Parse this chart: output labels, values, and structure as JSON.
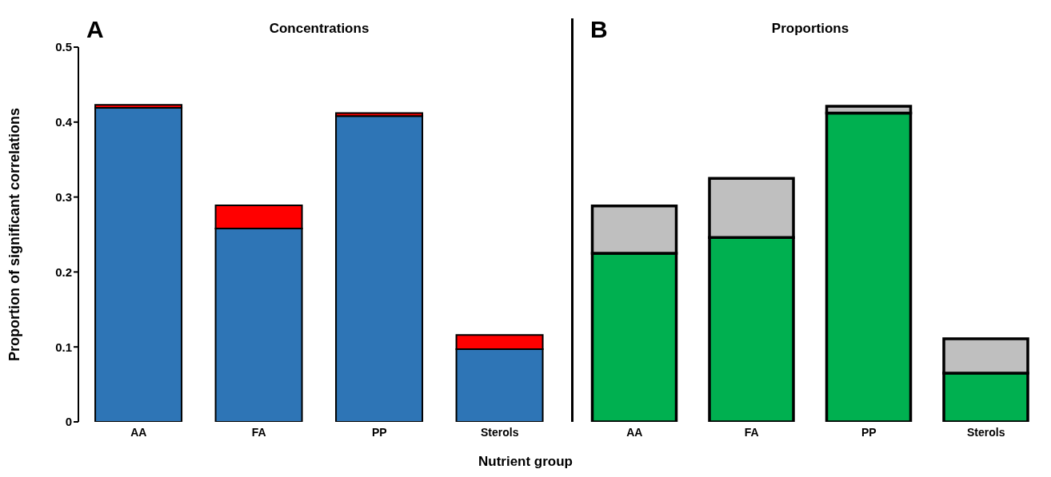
{
  "chart_data": [
    {
      "type": "bar",
      "title": "Concentrations",
      "ylabel": "Proportion of significant correlations",
      "xlabel": "Nutrient group",
      "annotations": [
        "A"
      ],
      "categories": [
        "AA",
        "FA",
        "PP",
        "Sterols"
      ],
      "stacked": true,
      "series": [
        {
          "color": "#2e75b6",
          "values": [
            0.419,
            0.258,
            0.408,
            0.097
          ]
        },
        {
          "color": "#ff0000",
          "values": [
            0.004,
            0.031,
            0.004,
            0.019
          ]
        }
      ],
      "ylim": [
        0,
        0.5
      ],
      "yticks": [
        0,
        0.1,
        0.2,
        0.3,
        0.4,
        0.5
      ],
      "grid": false,
      "legend": false
    },
    {
      "type": "bar",
      "title": "Proportions",
      "annotations": [
        "B"
      ],
      "categories": [
        "AA",
        "FA",
        "PP",
        "Sterols"
      ],
      "stacked": true,
      "series": [
        {
          "color": "#00b050",
          "values": [
            0.225,
            0.246,
            0.412,
            0.065
          ]
        },
        {
          "color": "#bfbfbf",
          "values": [
            0.063,
            0.079,
            0.009,
            0.046
          ]
        }
      ],
      "ylim": [
        0,
        0.5
      ],
      "yticks": [
        0,
        0.1,
        0.2,
        0.3,
        0.4,
        0.5
      ],
      "tick_labels": "x",
      "grid": false,
      "legend": false
    }
  ]
}
